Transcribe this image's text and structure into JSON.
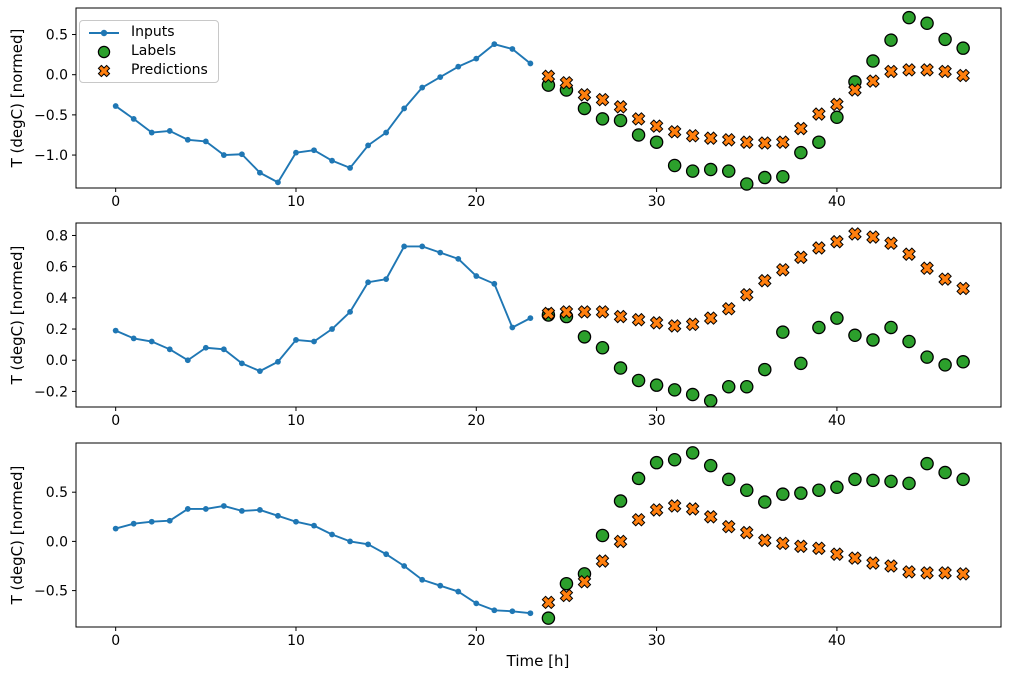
{
  "figure": {
    "background": "#ffffff",
    "ylabel": "T (degC) [normed]",
    "xlabel": "Time [h]"
  },
  "legend": {
    "items": [
      {
        "label": "Inputs",
        "marker": "line-dot",
        "color": "#1f77b4"
      },
      {
        "label": "Labels",
        "marker": "circle",
        "color": "#2ca02c",
        "edge": "#000000"
      },
      {
        "label": "Predictions",
        "marker": "x-cross",
        "color": "#ff7f0e",
        "edge": "#000000"
      }
    ]
  },
  "chart_data": [
    {
      "type": "line",
      "panel": 1,
      "title": "",
      "ylabel": "T (degC) [normed]",
      "xlabel": "",
      "grid": false,
      "xlim": [
        -2.2,
        49.1
      ],
      "ylim": [
        -1.41,
        0.83
      ],
      "xticks": [
        0,
        10,
        20,
        30,
        40
      ],
      "yticks": [
        0.5,
        0.0,
        -0.5,
        -1.0
      ],
      "yticklabels": [
        "0.5",
        "0.0",
        "−0.5",
        "−1.0"
      ],
      "series": [
        {
          "name": "Inputs",
          "type": "line",
          "color": "#1f77b4",
          "x": [
            0,
            1,
            2,
            3,
            4,
            5,
            6,
            7,
            8,
            9,
            10,
            11,
            12,
            13,
            14,
            15,
            16,
            17,
            18,
            19,
            20,
            21,
            22,
            23
          ],
          "values": [
            -0.39,
            -0.55,
            -0.72,
            -0.7,
            -0.81,
            -0.83,
            -1.0,
            -0.99,
            -1.22,
            -1.34,
            -0.97,
            -0.94,
            -1.07,
            -1.16,
            -0.88,
            -0.72,
            -0.42,
            -0.16,
            -0.03,
            0.1,
            0.2,
            0.38,
            0.32,
            0.14
          ]
        },
        {
          "name": "Labels",
          "type": "scatter_circle",
          "color": "#2ca02c",
          "edge": "#000000",
          "x": [
            24,
            25,
            26,
            27,
            28,
            29,
            30,
            31,
            32,
            33,
            34,
            35,
            36,
            37,
            38,
            39,
            40,
            41,
            42,
            43,
            44,
            45,
            46,
            47
          ],
          "values": [
            -0.13,
            -0.19,
            -0.42,
            -0.55,
            -0.57,
            -0.75,
            -0.84,
            -1.13,
            -1.2,
            -1.18,
            -1.2,
            -1.36,
            -1.28,
            -1.27,
            -0.97,
            -0.84,
            -0.53,
            -0.09,
            0.17,
            0.43,
            0.71,
            0.64,
            0.44,
            0.33
          ]
        },
        {
          "name": "Predictions",
          "type": "scatter_x",
          "color": "#ff7f0e",
          "edge": "#000000",
          "x": [
            24,
            25,
            26,
            27,
            28,
            29,
            30,
            31,
            32,
            33,
            34,
            35,
            36,
            37,
            38,
            39,
            40,
            41,
            42,
            43,
            44,
            45,
            46,
            47
          ],
          "values": [
            -0.02,
            -0.1,
            -0.25,
            -0.31,
            -0.4,
            -0.55,
            -0.64,
            -0.71,
            -0.76,
            -0.79,
            -0.81,
            -0.84,
            -0.85,
            -0.84,
            -0.67,
            -0.49,
            -0.37,
            -0.19,
            -0.08,
            0.04,
            0.06,
            0.06,
            0.04,
            -0.01
          ]
        }
      ]
    },
    {
      "type": "line",
      "panel": 2,
      "title": "",
      "ylabel": "T (degC) [normed]",
      "xlabel": "",
      "grid": false,
      "xlim": [
        -2.2,
        49.1
      ],
      "ylim": [
        -0.3,
        0.88
      ],
      "xticks": [
        0,
        10,
        20,
        30,
        40
      ],
      "yticks": [
        0.8,
        0.6,
        0.4,
        0.2,
        0.0,
        -0.2
      ],
      "yticklabels": [
        "0.8",
        "0.6",
        "0.4",
        "0.2",
        "0.0",
        "−0.2"
      ],
      "series": [
        {
          "name": "Inputs",
          "type": "line",
          "color": "#1f77b4",
          "x": [
            0,
            1,
            2,
            3,
            4,
            5,
            6,
            7,
            8,
            9,
            10,
            11,
            12,
            13,
            14,
            15,
            16,
            17,
            18,
            19,
            20,
            21,
            22,
            23
          ],
          "values": [
            0.19,
            0.14,
            0.12,
            0.07,
            0.0,
            0.08,
            0.07,
            -0.02,
            -0.07,
            -0.01,
            0.13,
            0.12,
            0.2,
            0.31,
            0.5,
            0.52,
            0.73,
            0.73,
            0.69,
            0.65,
            0.54,
            0.49,
            0.21,
            0.27
          ]
        },
        {
          "name": "Labels",
          "type": "scatter_circle",
          "color": "#2ca02c",
          "edge": "#000000",
          "x": [
            24,
            25,
            26,
            27,
            28,
            29,
            30,
            31,
            32,
            33,
            34,
            35,
            36,
            37,
            38,
            39,
            40,
            41,
            42,
            43,
            44,
            45,
            46,
            47
          ],
          "values": [
            0.29,
            0.28,
            0.15,
            0.08,
            -0.05,
            -0.13,
            -0.16,
            -0.19,
            -0.22,
            -0.26,
            -0.17,
            -0.17,
            -0.06,
            0.18,
            -0.02,
            0.21,
            0.27,
            0.16,
            0.13,
            0.21,
            0.12,
            0.02,
            -0.03,
            -0.01
          ]
        },
        {
          "name": "Predictions",
          "type": "scatter_x",
          "color": "#ff7f0e",
          "edge": "#000000",
          "x": [
            24,
            25,
            26,
            27,
            28,
            29,
            30,
            31,
            32,
            33,
            34,
            35,
            36,
            37,
            38,
            39,
            40,
            41,
            42,
            43,
            44,
            45,
            46,
            47
          ],
          "values": [
            0.3,
            0.31,
            0.31,
            0.31,
            0.28,
            0.26,
            0.24,
            0.22,
            0.23,
            0.27,
            0.33,
            0.42,
            0.51,
            0.58,
            0.66,
            0.72,
            0.76,
            0.81,
            0.79,
            0.75,
            0.68,
            0.59,
            0.52,
            0.46
          ]
        }
      ]
    },
    {
      "type": "line",
      "panel": 3,
      "title": "",
      "ylabel": "T (degC) [normed]",
      "xlabel": "Time [h]",
      "grid": false,
      "xlim": [
        -2.2,
        49.1
      ],
      "ylim": [
        -0.87,
        1.0
      ],
      "xticks": [
        0,
        10,
        20,
        30,
        40
      ],
      "yticks": [
        0.5,
        0.0,
        -0.5
      ],
      "yticklabels": [
        "0.5",
        "0.0",
        "−0.5"
      ],
      "series": [
        {
          "name": "Inputs",
          "type": "line",
          "color": "#1f77b4",
          "x": [
            0,
            1,
            2,
            3,
            4,
            5,
            6,
            7,
            8,
            9,
            10,
            11,
            12,
            13,
            14,
            15,
            16,
            17,
            18,
            19,
            20,
            21,
            22,
            23
          ],
          "values": [
            0.13,
            0.18,
            0.2,
            0.21,
            0.33,
            0.33,
            0.36,
            0.31,
            0.32,
            0.26,
            0.2,
            0.16,
            0.07,
            0.0,
            -0.03,
            -0.13,
            -0.25,
            -0.39,
            -0.45,
            -0.51,
            -0.63,
            -0.7,
            -0.71,
            -0.73
          ]
        },
        {
          "name": "Labels",
          "type": "scatter_circle",
          "color": "#2ca02c",
          "edge": "#000000",
          "x": [
            24,
            25,
            26,
            27,
            28,
            29,
            30,
            31,
            32,
            33,
            34,
            35,
            36,
            37,
            38,
            39,
            40,
            41,
            42,
            43,
            44,
            45,
            46,
            47
          ],
          "values": [
            -0.78,
            -0.43,
            -0.33,
            0.06,
            0.41,
            0.64,
            0.8,
            0.83,
            0.9,
            0.77,
            0.63,
            0.52,
            0.4,
            0.48,
            0.49,
            0.52,
            0.55,
            0.63,
            0.62,
            0.61,
            0.59,
            0.79,
            0.7,
            0.63
          ]
        },
        {
          "name": "Predictions",
          "type": "scatter_x",
          "color": "#ff7f0e",
          "edge": "#000000",
          "x": [
            24,
            25,
            26,
            27,
            28,
            29,
            30,
            31,
            32,
            33,
            34,
            35,
            36,
            37,
            38,
            39,
            40,
            41,
            42,
            43,
            44,
            45,
            46,
            47
          ],
          "values": [
            -0.62,
            -0.55,
            -0.41,
            -0.2,
            0.0,
            0.22,
            0.32,
            0.36,
            0.33,
            0.25,
            0.15,
            0.09,
            0.01,
            -0.02,
            -0.05,
            -0.07,
            -0.13,
            -0.17,
            -0.22,
            -0.25,
            -0.31,
            -0.32,
            -0.32,
            -0.33
          ]
        }
      ]
    }
  ]
}
